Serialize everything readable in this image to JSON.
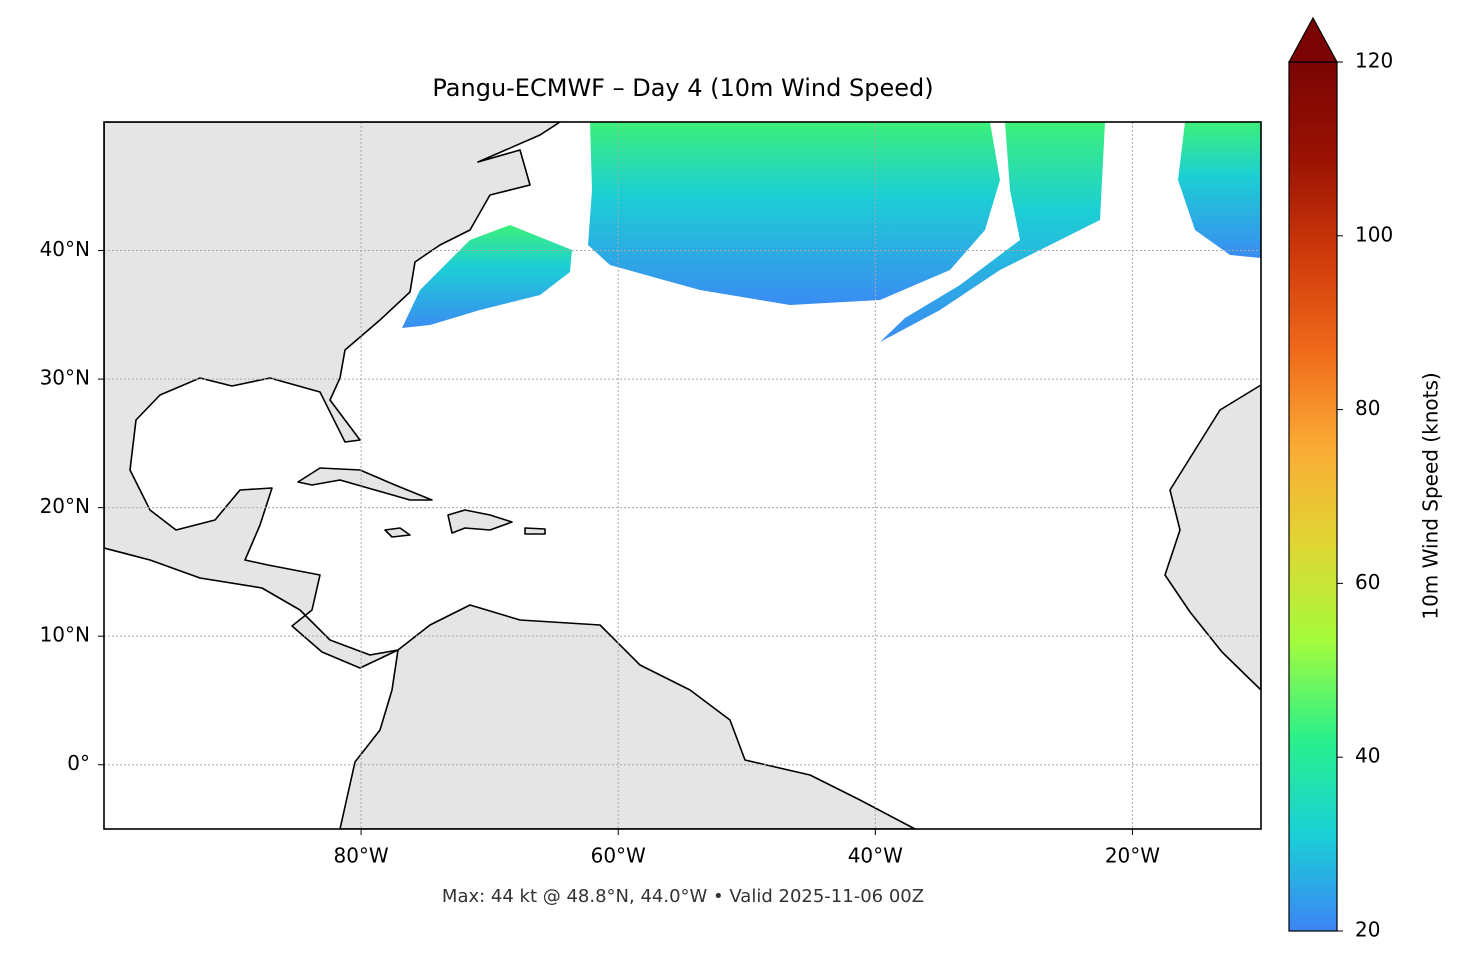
{
  "chart_data": {
    "type": "map",
    "title": "Pangu-ECMWF – Day 4 (10m Wind Speed)",
    "footnote": "Max: 44 kt @ 48.8°N, 44.0°W • Valid 2025-11-06 00Z",
    "xlim": [
      -100,
      -10
    ],
    "ylim": [
      -5,
      50
    ],
    "xticks": [
      {
        "value": -80,
        "label": "80°W"
      },
      {
        "value": -60,
        "label": "60°W"
      },
      {
        "value": -40,
        "label": "40°W"
      },
      {
        "value": -20,
        "label": "20°W"
      }
    ],
    "yticks": [
      {
        "value": 0,
        "label": "0°"
      },
      {
        "value": 10,
        "label": "10°N"
      },
      {
        "value": 20,
        "label": "20°N"
      },
      {
        "value": 30,
        "label": "30°N"
      },
      {
        "value": 40,
        "label": "40°N"
      }
    ],
    "grid": true,
    "colorbar": {
      "label": "10m Wind Speed (knots)",
      "lim": [
        20,
        120
      ],
      "ticks": [
        20,
        40,
        60,
        80,
        100,
        120
      ],
      "colors": [
        "#3d84f5",
        "#1ad0d6",
        "#2af08a",
        "#a4fb3c",
        "#e0d634",
        "#fbab35",
        "#f06a1a",
        "#cf3a0b",
        "#9a1203",
        "#7a0403"
      ]
    }
  }
}
